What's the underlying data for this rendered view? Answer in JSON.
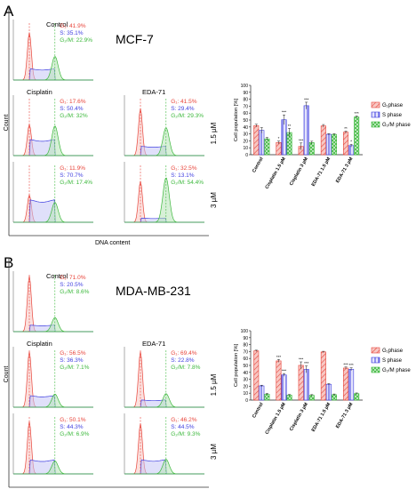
{
  "panels": [
    {
      "letter": "A",
      "cell_line": "MCF-7",
      "x_axis_label": "DNA content",
      "y_axis_label": "Count",
      "column_headers": [
        "Cisplatin",
        "EDA-71"
      ],
      "top_header": "Control",
      "row_labels": [
        "1.5 µM",
        "3 µM"
      ],
      "histograms": [
        {
          "label": "Control",
          "g1": "G₁: 41.9%",
          "s": "S: 35.1%",
          "g2m": "G₂/M: 22.9%"
        },
        {
          "label": "Cisplatin 1.5 µM",
          "g1": "G₁: 17.6%",
          "s": "S: 50.4%",
          "g2m": "G₂/M: 32%"
        },
        {
          "label": "EDA-71 1.5 µM",
          "g1": "G₁: 41.5%",
          "s": "S: 29.4%",
          "g2m": "G₂/M: 29.3%"
        },
        {
          "label": "Cisplatin 3 µM",
          "g1": "G₁: 11.9%",
          "s": "S: 70.7%",
          "g2m": "G₂/M: 17.4%"
        },
        {
          "label": "EDA-71 3 µM",
          "g1": "G₁: 32.5%",
          "s": "S: 13.1%",
          "g2m": "G₂/M: 54.4%"
        }
      ]
    },
    {
      "letter": "B",
      "cell_line": "MDA-MB-231",
      "x_axis_label": "DNA content",
      "y_axis_label": "Count",
      "column_headers": [
        "Cisplatin",
        "EDA-71"
      ],
      "top_header": "Control",
      "row_labels": [
        "1.5 µM",
        "3 µM"
      ],
      "histograms": [
        {
          "label": "Control",
          "g1": "G₁: 71.0%",
          "s": "S: 20.5%",
          "g2m": "G₂/M: 8.6%"
        },
        {
          "label": "Cisplatin 1.5 µM",
          "g1": "G₁: 56.5%",
          "s": "S: 36.3%",
          "g2m": "G₂/M: 7.1%"
        },
        {
          "label": "EDA-71 1.5 µM",
          "g1": "G₁: 69.4%",
          "s": "S: 22.8%",
          "g2m": "G₂/M: 7.8%"
        },
        {
          "label": "Cisplatin 3 µM",
          "g1": "G₁: 50.1%",
          "s": "S: 44.3%",
          "g2m": "G₂/M: 6.9%"
        },
        {
          "label": "EDA-71 3 µM",
          "g1": "G₁: 46.2%",
          "s": "S: 44.5%",
          "g2m": "G₂/M: 9.3%"
        }
      ]
    }
  ],
  "colors": {
    "g1": "#e8443a",
    "s": "#3f3fe0",
    "g2m": "#3cb83c",
    "g1_fill": "#f7c8c4",
    "s_fill": "#c7c7f5",
    "g2m_fill": "#b7e4b7"
  },
  "chart_data": [
    {
      "type": "bar",
      "panel": "A",
      "ylabel": "Cell population [%]",
      "ylim": [
        0,
        100
      ],
      "yticks": [
        0,
        10,
        20,
        30,
        40,
        50,
        60,
        70,
        80,
        90,
        100
      ],
      "categories": [
        "Control",
        "Cisplatin 1.5 µM",
        "Cisplatin 3 µM",
        "EDA-71 1.5 µM",
        "EDA-71 3 µM"
      ],
      "series": [
        {
          "name": "G₁phase",
          "values": [
            41.9,
            17.6,
            11.9,
            41.5,
            32.5
          ],
          "errors": [
            2,
            2,
            5,
            2,
            1.5
          ]
        },
        {
          "name": "S phase",
          "values": [
            35.1,
            50.4,
            70.7,
            29.4,
            13.1
          ],
          "errors": [
            4,
            7,
            5,
            1,
            2
          ]
        },
        {
          "name": "G₂/M phase",
          "values": [
            22.9,
            32.0,
            17.4,
            29.3,
            54.4
          ],
          "errors": [
            2,
            6,
            2,
            1,
            1.5
          ]
        }
      ],
      "significance": [
        [
          "",
          "",
          ""
        ],
        [
          "*",
          "***",
          "**"
        ],
        [
          "***",
          "***",
          ""
        ],
        [
          "",
          "",
          ""
        ],
        [
          "**",
          "*",
          "***"
        ]
      ],
      "legend_position": "right"
    },
    {
      "type": "bar",
      "panel": "B",
      "ylabel": "Cell population [%]",
      "ylim": [
        0,
        100
      ],
      "yticks": [
        0,
        10,
        20,
        30,
        40,
        50,
        60,
        70,
        80,
        90,
        100
      ],
      "categories": [
        "Control",
        "Cisplatin 1.5 µM",
        "Cisplatin 3 µM",
        "EDA-71 1.5 µM",
        "EDA-71 3 µM"
      ],
      "series": [
        {
          "name": "G₁phase",
          "values": [
            71.0,
            56.5,
            50.1,
            69.4,
            46.2
          ],
          "errors": [
            1,
            2,
            5,
            1,
            1.5
          ]
        },
        {
          "name": "S phase",
          "values": [
            20.5,
            36.3,
            44.3,
            22.8,
            44.5
          ],
          "errors": [
            1,
            2,
            5,
            1,
            2
          ]
        },
        {
          "name": "G₂/M phase",
          "values": [
            8.6,
            7.1,
            6.9,
            7.8,
            9.3
          ],
          "errors": [
            1,
            1,
            1,
            1,
            1
          ]
        }
      ],
      "significance": [
        [
          "",
          "",
          ""
        ],
        [
          "***",
          "***",
          ""
        ],
        [
          "***",
          "***",
          ""
        ],
        [
          "",
          "",
          ""
        ],
        [
          "***",
          "***",
          ""
        ]
      ],
      "legend_position": "right"
    }
  ]
}
